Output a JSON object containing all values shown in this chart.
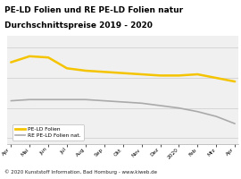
{
  "title_line1": "PE-LD Folien und RE PE-LD Folien natur",
  "title_line2": "Durchschnittspreise 2019 - 2020",
  "title_bg": "#f5c400",
  "title_color": "#000000",
  "footer": "© 2020 Kunststoff Information, Bad Homburg - www.kiweb.de",
  "x_labels": [
    "Apr",
    "Mai",
    "Jun",
    "Jul",
    "Aug",
    "Sep",
    "Okt",
    "Nov",
    "Dez",
    "2020",
    "Feb",
    "Mrz",
    "Apr"
  ],
  "pe_ld_folien": [
    88,
    93,
    92,
    83,
    81,
    80,
    79,
    78,
    77,
    77,
    78,
    75,
    72
  ],
  "re_pe_ld_folien": [
    56,
    57,
    57,
    57,
    57,
    56,
    55,
    54,
    52,
    50,
    47,
    43,
    37
  ],
  "pe_color": "#f5c400",
  "re_color": "#aaaaaa",
  "bg_plot": "#f0f0f0",
  "grid_color": "#cccccc",
  "legend_label_pe": "PE-LD Folien",
  "legend_label_re": "RE PE-LD Folien nat.",
  "footer_bg": "#b0b0b0",
  "ylim_min": 20,
  "ylim_max": 110
}
